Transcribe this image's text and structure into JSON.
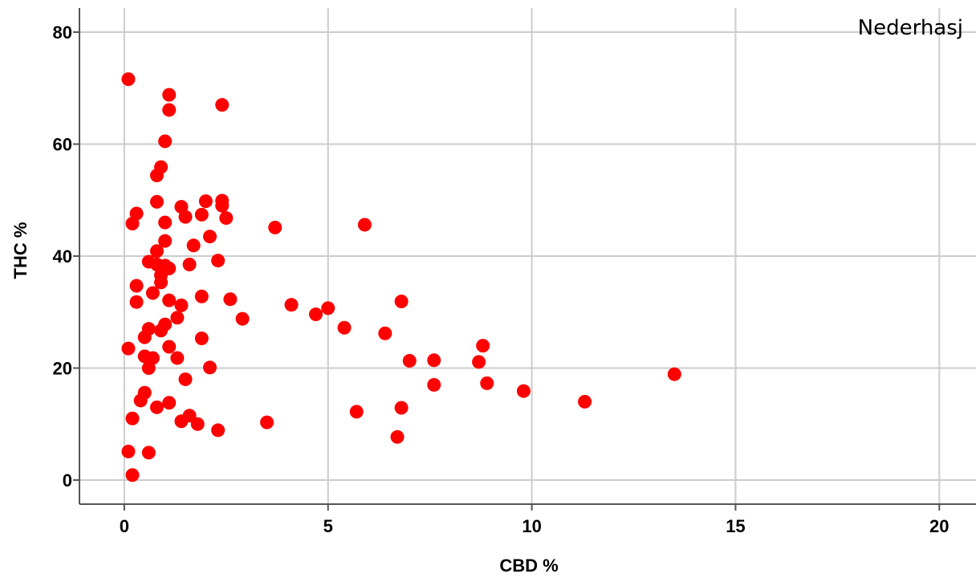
{
  "chart_data": {
    "type": "scatter",
    "title": "",
    "annotation": "Nederhasj",
    "xlabel": "CBD %",
    "ylabel": "THC %",
    "xlim": [
      -1.1,
      20.9
    ],
    "ylim": [
      -4.3,
      84.3
    ],
    "xticks": [
      0,
      5,
      10,
      15,
      20
    ],
    "yticks": [
      0,
      20,
      40,
      60,
      80
    ],
    "grid": true,
    "point_color": "#ff0000",
    "points": [
      [
        0.1,
        71.6
      ],
      [
        0.2,
        45.8
      ],
      [
        0.3,
        47.6
      ],
      [
        0.1,
        23.5
      ],
      [
        0.3,
        34.7
      ],
      [
        0.3,
        31.8
      ],
      [
        0.1,
        5.1
      ],
      [
        0.2,
        11.0
      ],
      [
        0.2,
        0.9
      ],
      [
        0.4,
        14.2
      ],
      [
        0.5,
        15.6
      ],
      [
        0.5,
        22.1
      ],
      [
        0.5,
        25.5
      ],
      [
        0.6,
        27.0
      ],
      [
        0.6,
        20.0
      ],
      [
        0.6,
        4.9
      ],
      [
        0.6,
        39.0
      ],
      [
        0.7,
        33.4
      ],
      [
        0.7,
        21.8
      ],
      [
        0.8,
        49.7
      ],
      [
        0.8,
        54.4
      ],
      [
        0.8,
        40.9
      ],
      [
        0.8,
        38.5
      ],
      [
        0.8,
        13.0
      ],
      [
        0.9,
        55.9
      ],
      [
        0.9,
        35.3
      ],
      [
        0.9,
        36.6
      ],
      [
        0.9,
        26.7
      ],
      [
        1.0,
        60.5
      ],
      [
        1.0,
        46.0
      ],
      [
        1.0,
        42.7
      ],
      [
        1.0,
        38.3
      ],
      [
        1.0,
        27.8
      ],
      [
        1.1,
        68.8
      ],
      [
        1.1,
        66.1
      ],
      [
        1.1,
        37.8
      ],
      [
        1.1,
        32.1
      ],
      [
        1.1,
        23.8
      ],
      [
        1.1,
        13.8
      ],
      [
        1.3,
        29.0
      ],
      [
        1.3,
        21.8
      ],
      [
        1.4,
        48.8
      ],
      [
        1.4,
        31.2
      ],
      [
        1.4,
        10.5
      ],
      [
        1.5,
        47.0
      ],
      [
        1.5,
        18.0
      ],
      [
        1.6,
        38.5
      ],
      [
        1.6,
        11.5
      ],
      [
        1.7,
        41.9
      ],
      [
        1.8,
        10.0
      ],
      [
        1.9,
        47.4
      ],
      [
        1.9,
        32.8
      ],
      [
        1.9,
        25.3
      ],
      [
        2.0,
        49.8
      ],
      [
        2.1,
        43.5
      ],
      [
        2.1,
        20.1
      ],
      [
        2.3,
        39.2
      ],
      [
        2.3,
        8.9
      ],
      [
        2.4,
        67.0
      ],
      [
        2.4,
        49.9
      ],
      [
        2.4,
        49.0
      ],
      [
        2.5,
        46.8
      ],
      [
        2.6,
        32.3
      ],
      [
        2.9,
        28.8
      ],
      [
        3.5,
        10.3
      ],
      [
        3.7,
        45.1
      ],
      [
        4.1,
        31.3
      ],
      [
        4.7,
        29.6
      ],
      [
        5.0,
        30.7
      ],
      [
        5.4,
        27.2
      ],
      [
        5.7,
        12.2
      ],
      [
        5.9,
        45.6
      ],
      [
        6.4,
        26.2
      ],
      [
        6.7,
        7.7
      ],
      [
        6.8,
        31.9
      ],
      [
        6.8,
        12.9
      ],
      [
        7.0,
        21.3
      ],
      [
        7.6,
        21.4
      ],
      [
        7.6,
        17.0
      ],
      [
        8.7,
        21.1
      ],
      [
        8.8,
        24.0
      ],
      [
        8.9,
        17.3
      ],
      [
        9.8,
        15.9
      ],
      [
        11.3,
        14.0
      ],
      [
        13.5,
        18.9
      ]
    ]
  }
}
